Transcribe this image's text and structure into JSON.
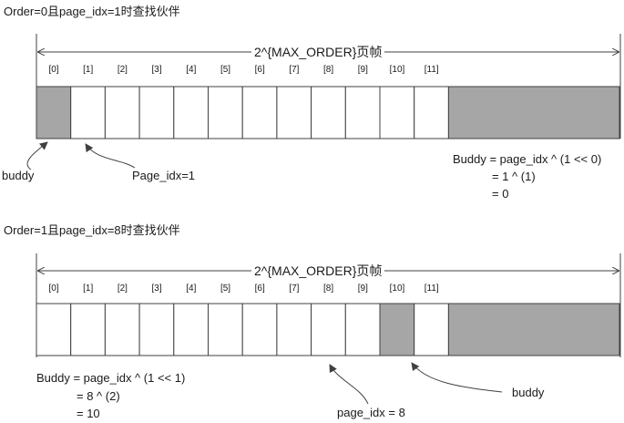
{
  "sections": [
    {
      "title": "Order=0且page_idx=1时查找伙伴",
      "span_label": "2^{MAX_ORDER}页帧",
      "indices": [
        "[0]",
        "[1]",
        "[2]",
        "[3]",
        "[4]",
        "[5]",
        "[6]",
        "[7]",
        "[8]",
        "[9]",
        "[10]",
        "[11]"
      ],
      "shaded_indices": [
        0
      ],
      "buddy_label": "buddy",
      "page_label": "Page_idx=1",
      "formula": [
        "Buddy = page_idx ^ (1 << 0)",
        "= 1 ^ (1)",
        "= 0"
      ]
    },
    {
      "title": "Order=1且page_idx=8时查找伙伴",
      "span_label": "2^{MAX_ORDER}页帧",
      "indices": [
        "[0]",
        "[1]",
        "[2]",
        "[3]",
        "[4]",
        "[5]",
        "[6]",
        "[7]",
        "[8]",
        "[9]",
        "[10]",
        "[11]"
      ],
      "shaded_indices": [
        10
      ],
      "buddy_label": "buddy",
      "page_label": "page_idx = 8",
      "formula": [
        "Buddy = page_idx ^ (1 << 1)",
        "= 8 ^ (2)",
        "= 10"
      ]
    }
  ],
  "colors": {
    "cell_fill": "#ffffff",
    "shaded_fill": "#a6a6a6",
    "stroke": "#404040"
  }
}
